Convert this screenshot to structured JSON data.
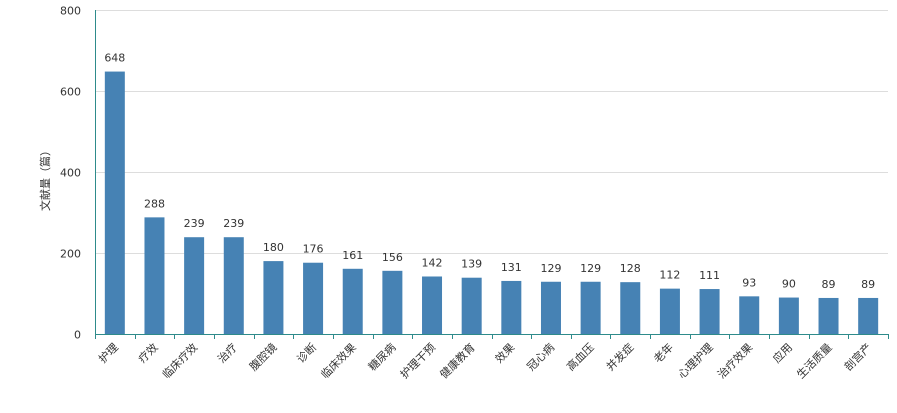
{
  "chart_data": {
    "type": "bar",
    "ylabel": "文献量（篇）",
    "ylim": [
      0,
      800
    ],
    "yticks": [
      0,
      200,
      400,
      600,
      800
    ],
    "grid": true,
    "bar_color": "#4682b4",
    "axis_color": "#2e8b8b",
    "categories": [
      "护理",
      "疗效",
      "临床疗效",
      "治疗",
      "腹腔镜",
      "诊断",
      "临床效果",
      "糖尿病",
      "护理干预",
      "健康教育",
      "效果",
      "冠心病",
      "高血压",
      "并发症",
      "老年",
      "心理护理",
      "治疗效果",
      "应用",
      "生活质量",
      "剖宫产"
    ],
    "values": [
      648,
      288,
      239,
      239,
      180,
      176,
      161,
      156,
      142,
      139,
      131,
      129,
      129,
      128,
      112,
      111,
      93,
      90,
      89,
      89
    ]
  }
}
